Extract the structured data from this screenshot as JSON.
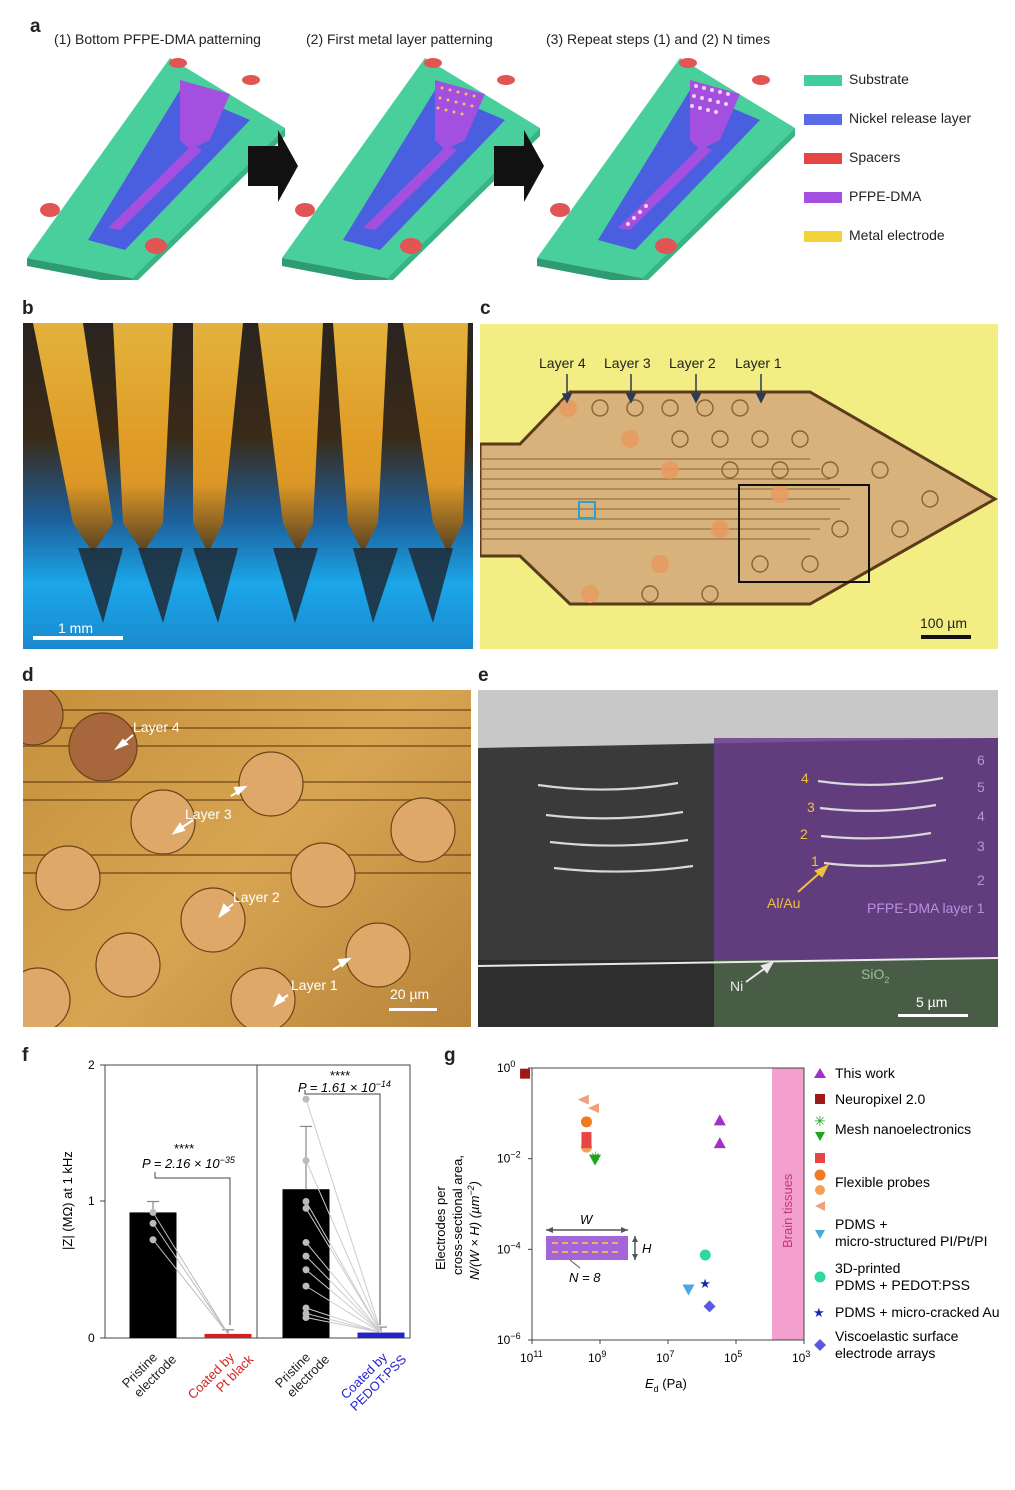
{
  "panels": {
    "a": "a",
    "b": "b",
    "c": "c",
    "d": "d",
    "e": "e",
    "f": "f",
    "g": "g"
  },
  "panel_a": {
    "steps": [
      "(1) Bottom PFPE-DMA patterning",
      "(2) First metal layer patterning",
      "(3) Repeat steps (1) and (2) N times"
    ],
    "legend": [
      {
        "label": "Substrate",
        "color": "#3ecf9a"
      },
      {
        "label": "Nickel release layer",
        "color": "#5a6be8"
      },
      {
        "label": "Spacers",
        "color": "#e64545"
      },
      {
        "label": "PFPE-DMA",
        "color": "#a34fe0"
      },
      {
        "label": "Metal electrode",
        "color": "#f2d43a"
      }
    ]
  },
  "panel_b": {
    "scalebar": "1 mm"
  },
  "panel_c": {
    "layers": [
      "Layer 4",
      "Layer 3",
      "Layer 2",
      "Layer 1"
    ],
    "scalebar": "100 µm"
  },
  "panel_d": {
    "layers": [
      "Layer 4",
      "Layer 3",
      "Layer 2",
      "Layer 1"
    ],
    "scalebar": "20 µm"
  },
  "panel_e": {
    "left_numbers": [
      "4",
      "3",
      "2",
      "1"
    ],
    "right_numbers": [
      "6",
      "5",
      "4",
      "3",
      "2"
    ],
    "alau": "Al/Au",
    "pfpe": "PFPE-DMA layer 1",
    "ni": "Ni",
    "sio2": "SiO",
    "sio2_sub": "2",
    "scalebar": "5 µm"
  },
  "panel_f": {
    "ylabel": "|Z| (MΩ) at 1 kHz",
    "yticks": [
      "0",
      "1",
      "2"
    ],
    "stars1": "****",
    "p1": "P = 2.16 × 10",
    "p1_exp": "−35",
    "stars2": "****",
    "p2": "P = 1.61 × 10",
    "p2_exp": "−14",
    "xlabels": [
      {
        "l1": "Pristine",
        "l2": "electrode",
        "color": "#222222"
      },
      {
        "l1": "Coated by",
        "l2": "Pt black",
        "color": "#d62020"
      },
      {
        "l1": "Pristine",
        "l2": "electrode",
        "color": "#222222"
      },
      {
        "l1": "Coated by",
        "l2": "PEDOT:PSS",
        "color": "#2424c8"
      }
    ]
  },
  "panel_g": {
    "ylabel1": "Electrodes per",
    "ylabel2": "cross-sectional area,",
    "ylabel3": "N/(W × H) (µm",
    "ylabel3_sup": "−2",
    "ylabel3_end": ")",
    "xlabel": "E",
    "xlabel_sub": "d",
    "xlabel_end": " (Pa)",
    "brain": "Brain tissues",
    "inset_w": "W",
    "inset_h": "H",
    "inset_n": "N = 8",
    "xticks": [
      {
        "b": "10",
        "e": "11"
      },
      {
        "b": "10",
        "e": "9"
      },
      {
        "b": "10",
        "e": "7"
      },
      {
        "b": "10",
        "e": "5"
      },
      {
        "b": "10",
        "e": "3"
      }
    ],
    "yticks": [
      {
        "b": "10",
        "e": "0"
      },
      {
        "b": "10",
        "e": "−2"
      },
      {
        "b": "10",
        "e": "−4"
      },
      {
        "b": "10",
        "e": "−6"
      }
    ],
    "legend": [
      {
        "label": "This work"
      },
      {
        "label": "Neuropixel 2.0"
      },
      {
        "label": "Mesh nanoelectronics"
      },
      {
        "label": "Flexible probes"
      },
      {
        "label": "PDMS +"
      },
      {
        "label": "micro-structured PI/Pt/PI"
      },
      {
        "label": "3D-printed"
      },
      {
        "label": "PDMS + PEDOT:PSS"
      },
      {
        "label": "PDMS + micro-cracked Au"
      },
      {
        "label": "Viscoelastic surface"
      },
      {
        "label": "electrode arrays"
      }
    ]
  },
  "chart_data": [
    {
      "type": "bar",
      "categories": [
        "Pristine electrode",
        "Coated by Pt black",
        "Pristine electrode",
        "Coated by PEDOT:PSS"
      ],
      "values": [
        0.92,
        0.03,
        1.09,
        0.04
      ],
      "ylabel": "|Z| (MΩ) at 1 kHz",
      "ylim": [
        0,
        2
      ],
      "annotations": [
        "****",
        "P = 2.16 × 10^−35",
        "****",
        "P = 1.61 × 10^−14"
      ]
    },
    {
      "type": "scatter",
      "xlabel": "Ed (Pa)",
      "ylabel": "Electrodes per cross-sectional area, N/(W × H) (µm^−2)",
      "xscale": "log-reversed",
      "xlim": [
        100000000000.0,
        1000.0
      ],
      "ylim": [
        1e-06,
        1
      ],
      "series": [
        {
          "name": "This work",
          "points": [
            [
              300000.0,
              0.07
            ],
            [
              300000.0,
              0.022
            ]
          ]
        },
        {
          "name": "Neuropixel 2.0",
          "points": [
            [
              160000000000.0,
              0.75
            ]
          ]
        },
        {
          "name": "Mesh nanoelectronics",
          "points": [
            [
              1400000000.0,
              0.0095
            ],
            [
              1400000000.0,
              0.011
            ]
          ]
        },
        {
          "name": "Flexible probes",
          "points": [
            [
              3000000000.0,
              0.2
            ],
            [
              2500000000.0,
              0.065
            ],
            [
              2500000000.0,
              0.03
            ],
            [
              2500000000.0,
              0.018
            ],
            [
              2500000000.0,
              0.022
            ],
            [
              1500000000.0,
              0.13
            ]
          ]
        },
        {
          "name": "PDMS + micro-structured PI/Pt/PI",
          "points": [
            [
              2500000.0,
              1.3e-05
            ]
          ]
        },
        {
          "name": "3D-printed PDMS + PEDOT:PSS",
          "points": [
            [
              800000.0,
              7.5e-05
            ]
          ]
        },
        {
          "name": "PDMS + micro-cracked Au",
          "points": [
            [
              800000.0,
              1.8e-05
            ]
          ]
        },
        {
          "name": "Viscoelastic surface electrode arrays",
          "points": [
            [
              600000.0,
              5.5e-06
            ]
          ]
        }
      ]
    }
  ]
}
